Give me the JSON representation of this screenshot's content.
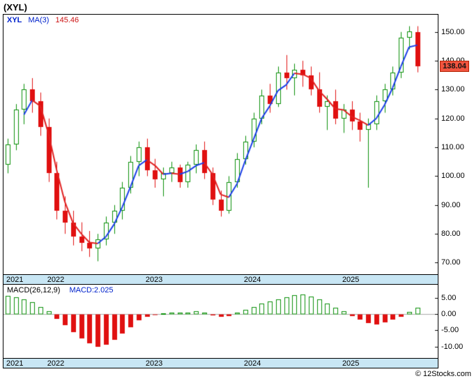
{
  "header": {
    "symbol_title": "(XYL)"
  },
  "price_panel": {
    "legend": {
      "symbol": "XYL",
      "ma_label": "MA(3)",
      "ma_value": "145.46"
    },
    "last_price_label": "138.04"
  },
  "macd_panel": {
    "legend": {
      "indicator": "MACD(26,12,9)",
      "value": "MACD:2.025"
    }
  },
  "footer": {
    "credit": "© 12Stocks.com"
  },
  "colors": {
    "candle_up": "#0a8f08",
    "candle_down": "#e01010",
    "ma_up": "#1a3de8",
    "ma_down": "#e02020",
    "band_bg": "#c8e6f4",
    "badge_bg": "#f1543f",
    "badge_border": "#b22000",
    "badge_text": "#111111",
    "legend_blue": "#0022cc",
    "legend_red": "#cc1111"
  },
  "chart_data": {
    "type": "candlestick",
    "title": "(XYL)",
    "symbol": "XYL",
    "legend_ma_value": 145.46,
    "slots": 53,
    "x_years": [
      {
        "label": "2021",
        "slot": 0
      },
      {
        "label": "2022",
        "slot": 5
      },
      {
        "label": "2023",
        "slot": 17
      },
      {
        "label": "2024",
        "slot": 29
      },
      {
        "label": "2025",
        "slot": 41
      }
    ],
    "price": {
      "ylim": [
        66,
        156
      ],
      "ticks": [
        150,
        140,
        130,
        120,
        110,
        100,
        90,
        80,
        70
      ],
      "ma_period": 3,
      "last_close": 138.04,
      "candles_ohlc": [
        [
          104,
          113,
          101,
          111
        ],
        [
          111,
          125,
          109,
          123
        ],
        [
          123,
          132,
          118,
          130
        ],
        [
          130,
          134,
          122,
          126
        ],
        [
          126,
          129,
          114,
          117
        ],
        [
          117,
          120,
          98,
          101
        ],
        [
          101,
          105,
          85,
          88
        ],
        [
          88,
          93,
          80,
          84
        ],
        [
          84,
          88,
          76,
          79
        ],
        [
          79,
          84,
          74,
          77
        ],
        [
          77,
          81,
          72,
          75
        ],
        [
          75,
          80,
          70.5,
          78
        ],
        [
          78,
          86,
          76,
          84
        ],
        [
          84,
          90,
          80,
          88
        ],
        [
          88,
          98,
          85,
          96
        ],
        [
          96,
          107,
          94,
          105
        ],
        [
          105,
          112,
          100,
          110
        ],
        [
          110,
          113,
          100,
          102
        ],
        [
          102,
          106,
          96,
          99
        ],
        [
          99,
          103,
          93,
          101
        ],
        [
          101,
          105,
          98,
          103
        ],
        [
          103,
          104,
          96,
          98
        ],
        [
          98,
          105,
          96,
          104
        ],
        [
          104,
          111,
          101,
          109
        ],
        [
          109,
          112,
          99,
          101
        ],
        [
          101,
          103,
          90,
          92
        ],
        [
          92,
          95,
          86,
          88
        ],
        [
          88,
          100,
          87,
          98
        ],
        [
          98,
          108,
          96,
          106
        ],
        [
          106,
          114,
          104,
          112
        ],
        [
          112,
          122,
          110,
          120
        ],
        [
          120,
          130,
          118,
          128
        ],
        [
          128,
          132,
          122,
          125
        ],
        [
          125,
          138,
          124,
          136
        ],
        [
          136,
          142,
          130,
          134
        ],
        [
          134,
          139,
          128,
          137
        ],
        [
          137,
          140,
          131,
          135
        ],
        [
          135,
          138,
          128,
          130
        ],
        [
          130,
          136,
          122,
          124
        ],
        [
          124,
          128,
          116,
          126
        ],
        [
          126,
          130,
          118,
          120
        ],
        [
          120,
          125,
          115,
          123
        ],
        [
          123,
          126,
          116,
          119
        ],
        [
          119,
          122,
          112,
          116
        ],
        [
          116,
          120,
          96,
          118
        ],
        [
          118,
          128,
          116,
          126
        ],
        [
          126,
          132,
          122,
          130
        ],
        [
          130,
          138,
          128,
          136
        ],
        [
          136,
          150,
          134,
          148
        ],
        [
          148,
          152,
          144,
          150.3
        ],
        [
          150,
          152,
          136,
          138.04
        ]
      ]
    },
    "macd": {
      "params": [
        26,
        12,
        9
      ],
      "ylim": [
        -13.5,
        9
      ],
      "ticks": [
        5,
        0,
        -5,
        -10
      ],
      "last": 2.025,
      "histogram": [
        5.6,
        5.2,
        4.6,
        3.6,
        2.2,
        0.8,
        -1.5,
        -3.5,
        -5.5,
        -7.5,
        -9.0,
        -10.0,
        -9.5,
        -8.0,
        -6.0,
        -4.0,
        -2.0,
        -0.8,
        -0.3,
        0.3,
        0.5,
        0.4,
        0.5,
        0.8,
        0.5,
        -0.4,
        -0.9,
        -0.6,
        0.4,
        1.2,
        2.2,
        3.2,
        3.8,
        4.6,
        5.2,
        5.8,
        6.0,
        5.4,
        4.4,
        3.2,
        2.0,
        0.8,
        -0.6,
        -1.8,
        -2.8,
        -3.2,
        -2.6,
        -1.8,
        -0.8,
        0.6,
        2.025
      ]
    }
  }
}
